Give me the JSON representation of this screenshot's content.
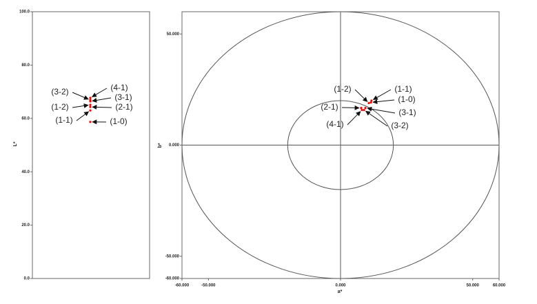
{
  "chart_data": [
    {
      "type": "scatter",
      "y_label": "L*",
      "labels": [
        "(1-0)",
        "(1-1)",
        "(1-2)",
        "(2-1)",
        "(3-1)",
        "(3-2)",
        "(4-1)"
      ],
      "values": [
        58.7,
        63.0,
        65.1,
        64.3,
        66.4,
        66.9,
        67.7
      ],
      "color": "#ff0000",
      "ylim": [
        0,
        100
      ],
      "yticks": [
        {
          "value": 0,
          "label": "0.0"
        },
        {
          "value": 20,
          "label": "20.0"
        },
        {
          "value": 40,
          "label": "40.0"
        },
        {
          "value": 60,
          "label": "60.0"
        },
        {
          "value": 80,
          "label": "80.0"
        },
        {
          "value": 100,
          "label": "100.0"
        }
      ]
    },
    {
      "type": "scatter",
      "x_label": "a*",
      "y_label": "b*",
      "labels": [
        "(1-0)",
        "(1-1)",
        "(1-2)",
        "(2-1)",
        "(3-1)",
        "(3-2)",
        "(4-1)"
      ],
      "x": [
        11.5,
        11.7,
        10.7,
        7.8,
        9.4,
        8.9,
        8.1
      ],
      "values": [
        19.2,
        20.0,
        18.9,
        16.7,
        16.7,
        15.8,
        15.8
      ],
      "color": "#ff0000",
      "circles": [
        60,
        20
      ],
      "xlim": [
        -60,
        60
      ],
      "ylim": [
        -60,
        60
      ],
      "xticks": [
        {
          "value": -60,
          "label": "-60.000"
        },
        {
          "value": -50,
          "label": "-50.000"
        },
        {
          "value": 0,
          "label": "0.000"
        },
        {
          "value": 50,
          "label": "50.000"
        },
        {
          "value": 60,
          "label": "60.000"
        }
      ],
      "yticks": [
        {
          "value": 50,
          "label": "50.000"
        },
        {
          "value": 0,
          "label": "0.000"
        },
        {
          "value": -50,
          "label": "-50.000"
        },
        {
          "value": -60,
          "label": "-60.000"
        }
      ]
    }
  ]
}
